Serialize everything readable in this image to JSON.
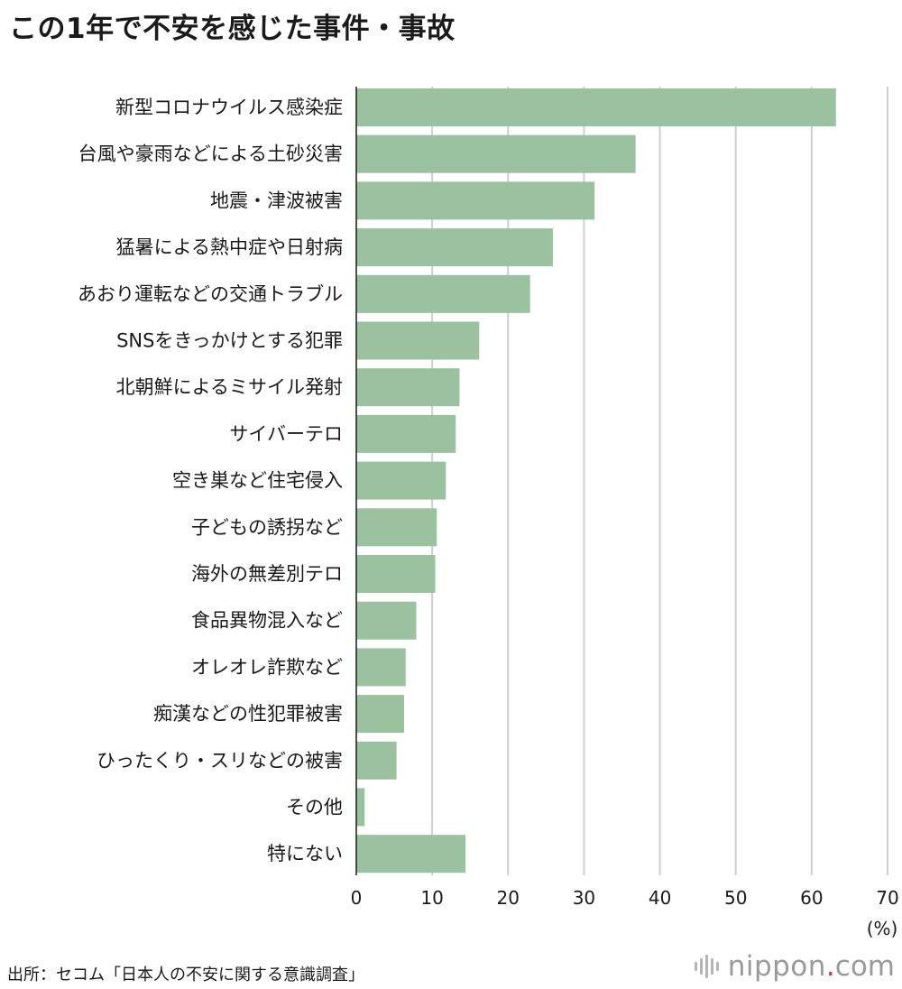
{
  "chart_data": {
    "type": "bar",
    "orientation": "horizontal",
    "title": "この1年で不安を感じた事件・事故",
    "categories": [
      "新型コロナウイルス感染症",
      "台風や豪雨などによる土砂災害",
      "地震・津波被害",
      "猛暑による熱中症や日射病",
      "あおり運転などの交通トラブル",
      "SNSをきっかけとする犯罪",
      "北朝鮮によるミサイル発射",
      "サイバーテロ",
      "空き巣など住宅侵入",
      "子どもの誘拐など",
      "海外の無差別テロ",
      "食品異物混入など",
      "オレオレ詐欺など",
      "痴漢などの性犯罪被害",
      "ひったくり・スリなどの被害",
      "その他",
      "特にない"
    ],
    "values": [
      63.2,
      36.8,
      31.4,
      25.9,
      22.9,
      16.2,
      13.6,
      13.1,
      11.8,
      10.6,
      10.4,
      7.9,
      6.5,
      6.3,
      5.3,
      1.1,
      14.4
    ],
    "xlim": [
      0,
      70
    ],
    "xticks": [
      "0",
      "10",
      "20",
      "30",
      "40",
      "50",
      "60",
      "70"
    ],
    "xunit": "(%)",
    "grid": true,
    "bar_color": "#9bc29e"
  },
  "source": "出所：セコム「日本人の不安に関する意識調査」",
  "logo": {
    "name": "nippon",
    "dot": ".",
    "suffix": "com",
    "dot_color": "#d9332b"
  }
}
